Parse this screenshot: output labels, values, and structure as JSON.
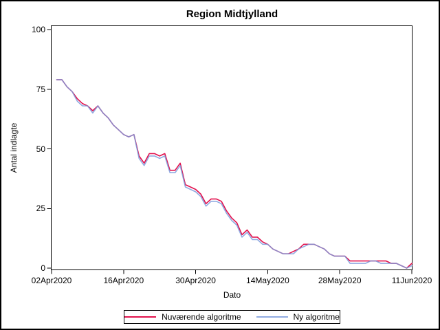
{
  "figure": {
    "title": "Region Midtjylland"
  },
  "chart_data": {
    "type": "line",
    "title": "Region Midtjylland",
    "xlabel": "Dato",
    "ylabel": "Antal indlagte",
    "ylim": [
      0,
      100
    ],
    "grid": false,
    "legend_position": "bottom",
    "y_ticks": [
      0,
      25,
      50,
      75,
      100
    ],
    "x_ticks": [
      {
        "label": "02Apr2020",
        "day": 0
      },
      {
        "label": "16Apr2020",
        "day": 14
      },
      {
        "label": "30Apr2020",
        "day": 28
      },
      {
        "label": "14May2020",
        "day": 42
      },
      {
        "label": "28May2020",
        "day": 56
      },
      {
        "label": "11Jun2020",
        "day": 70
      }
    ],
    "dates": [
      "03Apr2020",
      "04Apr2020",
      "05Apr2020",
      "06Apr2020",
      "07Apr2020",
      "08Apr2020",
      "09Apr2020",
      "10Apr2020",
      "11Apr2020",
      "12Apr2020",
      "13Apr2020",
      "14Apr2020",
      "15Apr2020",
      "16Apr2020",
      "17Apr2020",
      "18Apr2020",
      "19Apr2020",
      "20Apr2020",
      "21Apr2020",
      "22Apr2020",
      "23Apr2020",
      "24Apr2020",
      "25Apr2020",
      "26Apr2020",
      "27Apr2020",
      "28Apr2020",
      "29Apr2020",
      "30Apr2020",
      "01May2020",
      "02May2020",
      "03May2020",
      "04May2020",
      "05May2020",
      "06May2020",
      "07May2020",
      "08May2020",
      "09May2020",
      "10May2020",
      "11May2020",
      "12May2020",
      "13May2020",
      "14May2020",
      "15May2020",
      "16May2020",
      "17May2020",
      "18May2020",
      "19May2020",
      "20May2020",
      "21May2020",
      "22May2020",
      "23May2020",
      "24May2020",
      "25May2020",
      "26May2020",
      "27May2020",
      "28May2020",
      "29May2020",
      "30May2020",
      "31May2020",
      "01Jun2020",
      "02Jun2020",
      "03Jun2020",
      "04Jun2020",
      "05Jun2020",
      "06Jun2020",
      "07Jun2020",
      "08Jun2020",
      "09Jun2020",
      "10Jun2020",
      "11Jun2020"
    ],
    "series": [
      {
        "name": "Nuværende algoritme",
        "color": "#E2104C",
        "opacity": 1,
        "values": [
          79,
          79,
          76,
          74,
          71,
          69,
          68,
          66,
          68,
          65,
          63,
          60,
          58,
          56,
          55,
          56,
          47,
          44,
          48,
          48,
          47,
          48,
          41,
          41,
          44,
          35,
          34,
          33,
          31,
          27,
          29,
          29,
          28,
          24,
          21,
          19,
          14,
          16,
          13,
          13,
          11,
          10,
          8,
          7,
          6,
          6,
          7,
          8,
          10,
          10,
          10,
          9,
          8,
          6,
          5,
          5,
          5,
          3,
          3,
          3,
          3,
          3,
          3,
          3,
          3,
          2,
          2,
          1,
          0,
          2
        ]
      },
      {
        "name": "Ny algoritme",
        "color": "#7D9BDC",
        "opacity": 0.85,
        "values": [
          79,
          79,
          76,
          74,
          70,
          68,
          68,
          65,
          68,
          65,
          63,
          60,
          58,
          56,
          55,
          56,
          46,
          43,
          47,
          47,
          46,
          47,
          40,
          40,
          43,
          34,
          33,
          32,
          30,
          26,
          28,
          28,
          27,
          23,
          20,
          18,
          13,
          15,
          12,
          12,
          10,
          10,
          8,
          7,
          6,
          6,
          6,
          8,
          9,
          10,
          10,
          9,
          8,
          6,
          5,
          5,
          5,
          2,
          2,
          2,
          2,
          3,
          3,
          2,
          2,
          2,
          2,
          1,
          0,
          1
        ]
      }
    ]
  }
}
